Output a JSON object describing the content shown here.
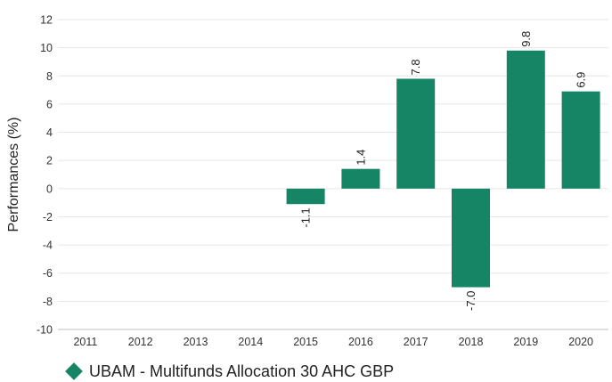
{
  "chart_data": {
    "type": "bar",
    "categories": [
      "2011",
      "2012",
      "2013",
      "2014",
      "2015",
      "2016",
      "2017",
      "2018",
      "2019",
      "2020"
    ],
    "series": [
      {
        "name": "UBAM - Multifunds Allocation 30 AHC GBP",
        "values": [
          null,
          null,
          null,
          null,
          -1.1,
          1.4,
          7.8,
          -7.0,
          9.8,
          6.9
        ],
        "labels": [
          "",
          "",
          "",
          "",
          "-1.1",
          "1.4",
          "7.8",
          "-7.0",
          "9.8",
          "6.9"
        ]
      }
    ],
    "title": "",
    "xlabel": "",
    "ylabel": "Performances (%)",
    "ylim": [
      -10,
      12
    ],
    "yticks": [
      -10,
      -8,
      -6,
      -4,
      -2,
      0,
      2,
      4,
      6,
      8,
      10,
      12
    ],
    "ytick_labels": [
      "-10",
      "-8",
      "-6",
      "-4",
      "-2",
      "0",
      "2",
      "4",
      "6",
      "8",
      "10",
      "12"
    ],
    "grid": true,
    "legend_position": "bottom-left",
    "colors": {
      "bar": "#168565",
      "grid": "#e6e6e6",
      "axis": "#bfbfbf"
    }
  }
}
